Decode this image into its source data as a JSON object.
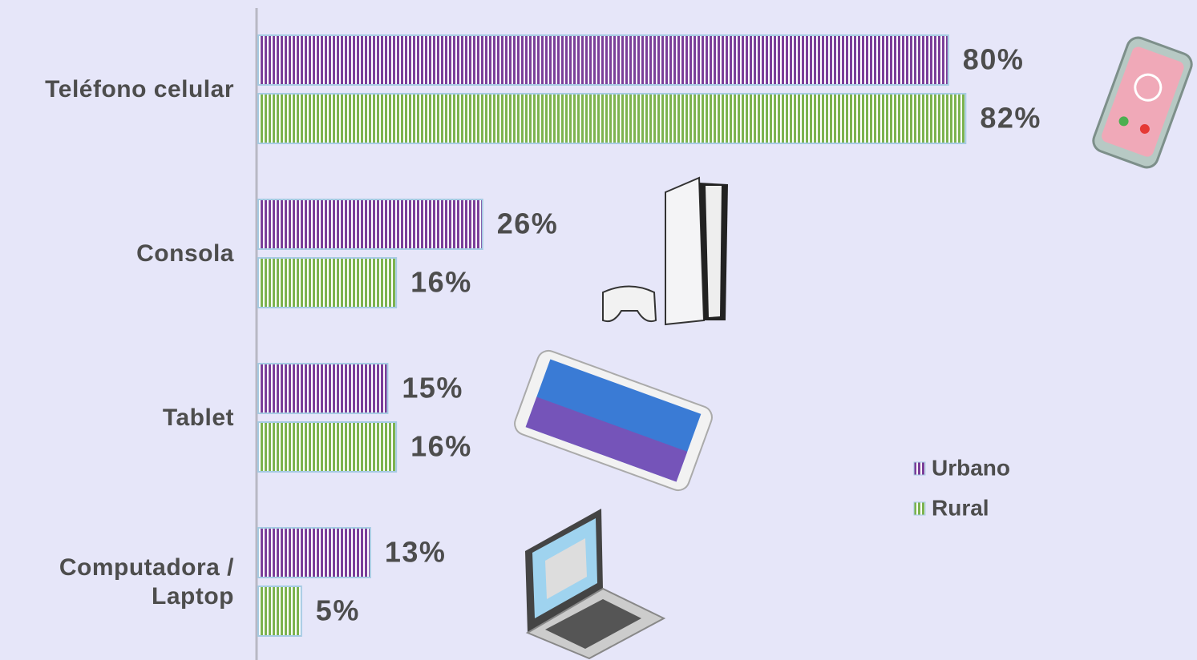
{
  "chart_data": {
    "type": "bar",
    "orientation": "horizontal",
    "categories": [
      "Teléfono celular",
      "Consola",
      "Tablet",
      "Computadora / Laptop"
    ],
    "series": [
      {
        "name": "Urbano",
        "color": "#7b3f9a",
        "values": [
          80,
          26,
          15,
          13
        ],
        "value_labels": [
          "80%",
          "26%",
          "15%",
          "13%"
        ]
      },
      {
        "name": "Rural",
        "color": "#7db34f",
        "values": [
          82,
          16,
          16,
          5
        ],
        "value_labels": [
          "82%",
          "16%",
          "16%",
          "5%"
        ]
      }
    ],
    "xlim": [
      0,
      100
    ]
  }
}
